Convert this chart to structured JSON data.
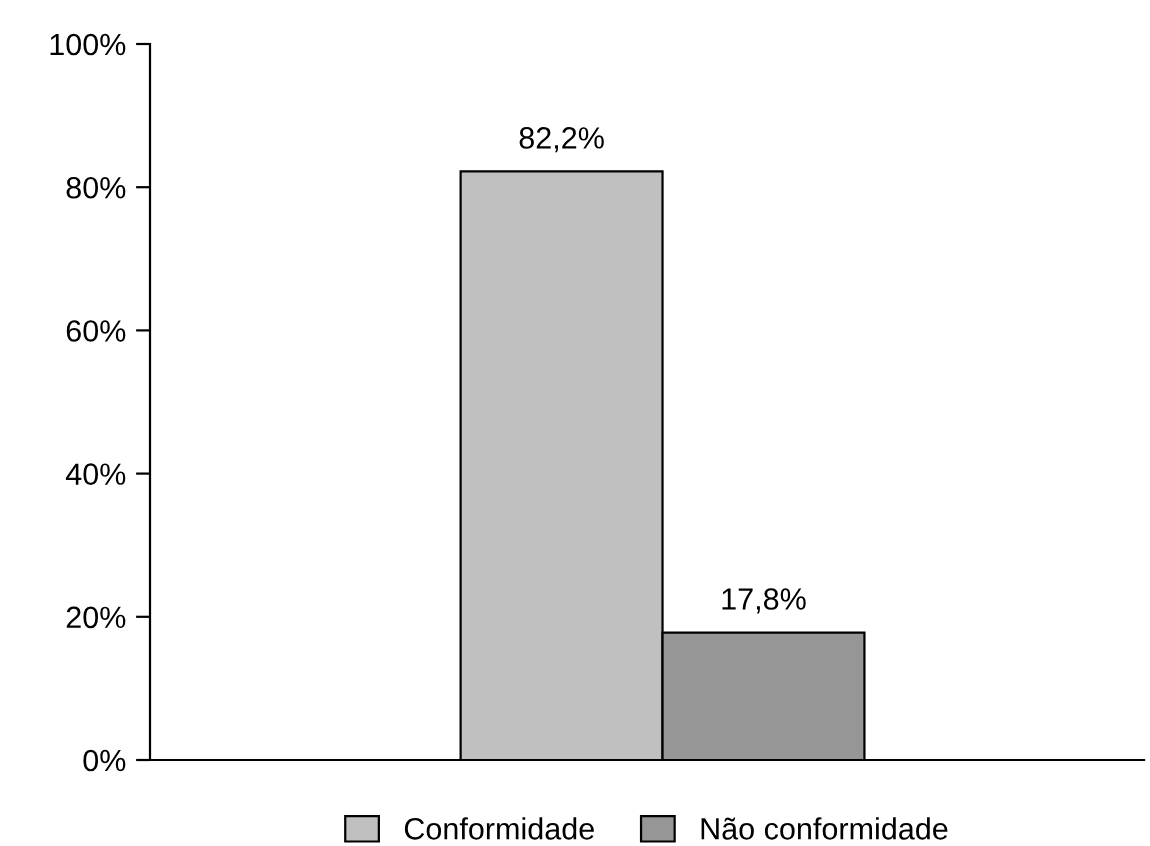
{
  "chart_data": {
    "type": "bar",
    "categories": [
      null
    ],
    "series": [
      {
        "name": "Conformidade",
        "color": "#c0c0c0",
        "values": [
          82.2
        ],
        "value_labels": [
          "82,2%"
        ]
      },
      {
        "name": "Não conformidade",
        "color": "#969696",
        "values": [
          17.8
        ],
        "value_labels": [
          "17,8%"
        ]
      }
    ],
    "ylim": [
      0,
      100
    ],
    "yticks": [
      {
        "value": 0,
        "label": "0%"
      },
      {
        "value": 20,
        "label": "20%"
      },
      {
        "value": 40,
        "label": "40%"
      },
      {
        "value": 60,
        "label": "60%"
      },
      {
        "value": 80,
        "label": "80%"
      },
      {
        "value": 100,
        "label": "100%"
      }
    ],
    "legend": "bottom",
    "grid": false
  }
}
